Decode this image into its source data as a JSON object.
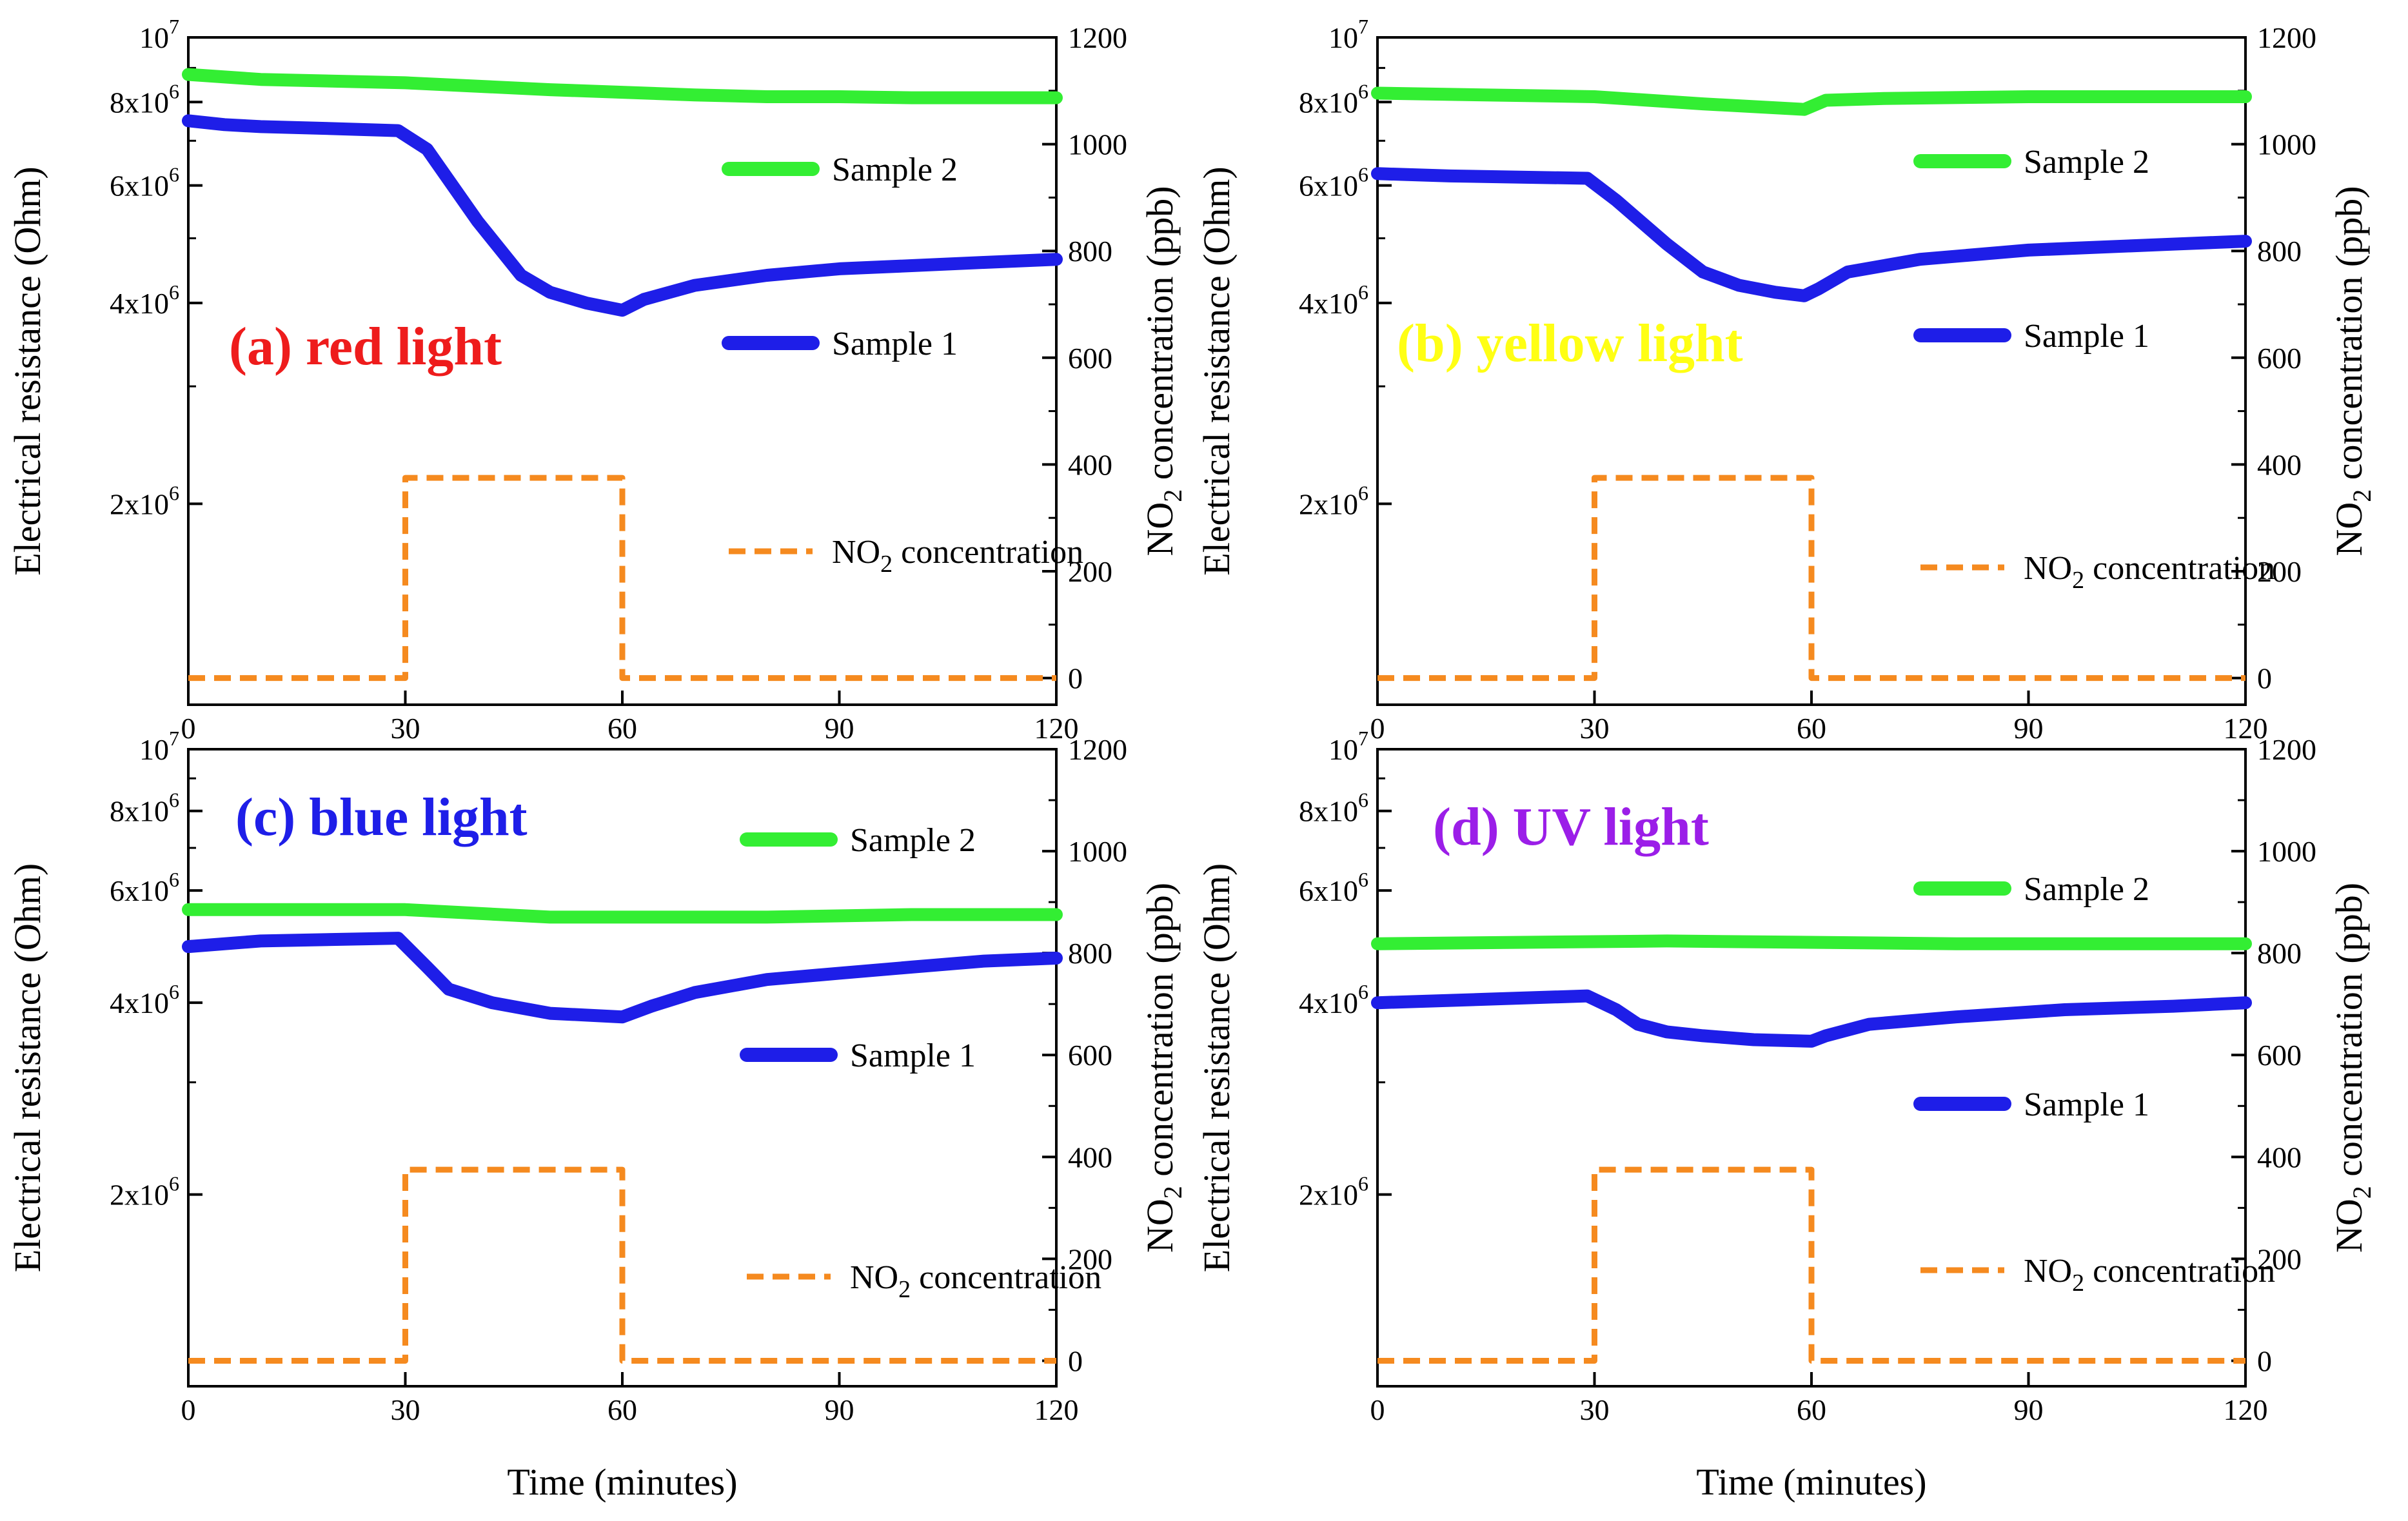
{
  "figure": {
    "shared_xlabel": "Time (minutes)",
    "sample_count": 4
  },
  "chart_data": [
    {
      "id": "a",
      "type": "line",
      "title": "(a) red light",
      "title_color": "#ee1c1c",
      "xlabel": "Time (minutes)",
      "ylabel": "Electrical resistance (Ohm)",
      "y2label": "NO2 concentration (ppb)",
      "y2label_main": "NO",
      "y2label_sub": "2",
      "y2label_rest": " concentration (ppb)",
      "xlim": [
        0,
        120
      ],
      "xticks": [
        0,
        30,
        60,
        90,
        120
      ],
      "xtick_labels": [
        "0",
        "30",
        "60",
        "90",
        "120"
      ],
      "yscale": "log",
      "ylim": [
        1000000,
        10000000
      ],
      "yticks": [
        {
          "value": 2000000,
          "mant": "2x10",
          "exp": "6"
        },
        {
          "value": 4000000,
          "mant": "4x10",
          "exp": "6"
        },
        {
          "value": 6000000,
          "mant": "6x10",
          "exp": "6"
        },
        {
          "value": 8000000,
          "mant": "8x10",
          "exp": "6"
        },
        {
          "value": 10000000,
          "mant": "10",
          "exp": "7"
        }
      ],
      "y2lim": [
        -50,
        1200
      ],
      "y2ticks": [
        0,
        200,
        400,
        600,
        800,
        1000,
        1200
      ],
      "y2tick_labels": [
        "0",
        "200",
        "400",
        "600",
        "800",
        "1000",
        "1200"
      ],
      "series": [
        {
          "name": "Sample 2",
          "axis": "left",
          "color": "#33ee33",
          "style": "solid",
          "x": [
            0,
            10,
            30,
            50,
            70,
            80,
            90,
            100,
            120
          ],
          "y": [
            8800000,
            8650000,
            8550000,
            8350000,
            8200000,
            8150000,
            8150000,
            8120000,
            8120000
          ]
        },
        {
          "name": "Sample 1",
          "axis": "left",
          "color": "#1e1ee8",
          "style": "solid",
          "x": [
            0,
            5,
            10,
            20,
            29,
            33,
            40,
            46,
            50,
            55,
            60,
            63,
            70,
            80,
            90,
            100,
            110,
            120
          ],
          "y": [
            7500000,
            7400000,
            7350000,
            7300000,
            7250000,
            6800000,
            5300000,
            4400000,
            4150000,
            4000000,
            3900000,
            4050000,
            4250000,
            4400000,
            4500000,
            4550000,
            4600000,
            4650000
          ]
        },
        {
          "name": "NO2 concentration",
          "legend_main": "NO",
          "legend_sub": "2",
          "legend_rest": " concentration",
          "axis": "right",
          "color": "#f58a1f",
          "style": "dashed",
          "x": [
            0,
            30,
            30,
            60,
            60,
            120
          ],
          "y": [
            0,
            0,
            375,
            375,
            0,
            0
          ]
        }
      ],
      "legend": [
        {
          "name": "Sample 2",
          "color": "#33ee33",
          "style": "solid"
        },
        {
          "name": "Sample 1",
          "color": "#1e1ee8",
          "style": "solid"
        },
        {
          "name": "NO2 concentration",
          "color": "#f58a1f",
          "style": "dashed"
        }
      ]
    },
    {
      "id": "b",
      "type": "line",
      "title": "(b) yellow light",
      "title_color": "#ffff14",
      "xlabel": "Time (minutes)",
      "ylabel": "Electrical resistance (Ohm)",
      "y2label": "NO2 concentration (ppb)",
      "y2label_main": "NO",
      "y2label_sub": "2",
      "y2label_rest": " concentration (ppb)",
      "xlim": [
        0,
        120
      ],
      "xticks": [
        0,
        30,
        60,
        90,
        120
      ],
      "xtick_labels": [
        "0",
        "30",
        "60",
        "90",
        "120"
      ],
      "yscale": "log",
      "ylim": [
        1000000,
        10000000
      ],
      "yticks": [
        {
          "value": 2000000,
          "mant": "2x10",
          "exp": "6"
        },
        {
          "value": 4000000,
          "mant": "4x10",
          "exp": "6"
        },
        {
          "value": 6000000,
          "mant": "6x10",
          "exp": "6"
        },
        {
          "value": 8000000,
          "mant": "8x10",
          "exp": "6"
        },
        {
          "value": 10000000,
          "mant": "10",
          "exp": "7"
        }
      ],
      "y2lim": [
        -50,
        1200
      ],
      "y2ticks": [
        0,
        200,
        400,
        600,
        800,
        1000,
        1200
      ],
      "y2tick_labels": [
        "0",
        "200",
        "400",
        "600",
        "800",
        "1000",
        "1200"
      ],
      "series": [
        {
          "name": "Sample 2",
          "axis": "left",
          "color": "#33ee33",
          "style": "solid",
          "x": [
            0,
            30,
            45,
            59,
            62,
            70,
            90,
            110,
            120
          ],
          "y": [
            8250000,
            8150000,
            7950000,
            7800000,
            8050000,
            8100000,
            8150000,
            8150000,
            8150000
          ]
        },
        {
          "name": "Sample 1",
          "axis": "left",
          "color": "#1e1ee8",
          "style": "solid",
          "x": [
            0,
            10,
            29,
            33,
            40,
            45,
            50,
            55,
            59,
            61,
            65,
            75,
            90,
            100,
            110,
            120
          ],
          "y": [
            6250000,
            6200000,
            6150000,
            5700000,
            4900000,
            4450000,
            4250000,
            4150000,
            4100000,
            4200000,
            4450000,
            4650000,
            4800000,
            4850000,
            4900000,
            4950000
          ]
        },
        {
          "name": "NO2 concentration",
          "legend_main": "NO",
          "legend_sub": "2",
          "legend_rest": " concentration",
          "axis": "right",
          "color": "#f58a1f",
          "style": "dashed",
          "x": [
            0,
            30,
            30,
            60,
            60,
            120
          ],
          "y": [
            0,
            0,
            375,
            375,
            0,
            0
          ]
        }
      ],
      "legend": [
        {
          "name": "Sample 2",
          "color": "#33ee33",
          "style": "solid"
        },
        {
          "name": "Sample 1",
          "color": "#1e1ee8",
          "style": "solid"
        },
        {
          "name": "NO2 concentration",
          "color": "#f58a1f",
          "style": "dashed"
        }
      ]
    },
    {
      "id": "c",
      "type": "line",
      "title": "(c) blue light",
      "title_color": "#1e1ee8",
      "xlabel": "Time (minutes)",
      "ylabel": "Electrical resistance (Ohm)",
      "y2label": "NO2 concentration (ppb)",
      "y2label_main": "NO",
      "y2label_sub": "2",
      "y2label_rest": " concentration (ppb)",
      "xlim": [
        0,
        120
      ],
      "xticks": [
        0,
        30,
        60,
        90,
        120
      ],
      "xtick_labels": [
        "0",
        "30",
        "60",
        "90",
        "120"
      ],
      "yscale": "log",
      "ylim": [
        1000000,
        10000000
      ],
      "yticks": [
        {
          "value": 2000000,
          "mant": "2x10",
          "exp": "6"
        },
        {
          "value": 4000000,
          "mant": "4x10",
          "exp": "6"
        },
        {
          "value": 6000000,
          "mant": "6x10",
          "exp": "6"
        },
        {
          "value": 8000000,
          "mant": "8x10",
          "exp": "6"
        },
        {
          "value": 10000000,
          "mant": "10",
          "exp": "7"
        }
      ],
      "y2lim": [
        -50,
        1200
      ],
      "y2ticks": [
        0,
        200,
        400,
        600,
        800,
        1000,
        1200
      ],
      "y2tick_labels": [
        "0",
        "200",
        "400",
        "600",
        "800",
        "1000",
        "1200"
      ],
      "series": [
        {
          "name": "Sample 2",
          "axis": "left",
          "color": "#33ee33",
          "style": "solid",
          "x": [
            0,
            30,
            50,
            60,
            80,
            100,
            120
          ],
          "y": [
            5600000,
            5600000,
            5450000,
            5450000,
            5450000,
            5500000,
            5500000
          ]
        },
        {
          "name": "Sample 1",
          "axis": "left",
          "color": "#1e1ee8",
          "style": "solid",
          "x": [
            0,
            10,
            29,
            33,
            36,
            42,
            50,
            60,
            64,
            70,
            80,
            90,
            100,
            110,
            120
          ],
          "y": [
            4900000,
            5000000,
            5050000,
            4550000,
            4200000,
            4000000,
            3850000,
            3800000,
            3950000,
            4150000,
            4350000,
            4450000,
            4550000,
            4650000,
            4700000
          ]
        },
        {
          "name": "NO2 concentration",
          "legend_main": "NO",
          "legend_sub": "2",
          "legend_rest": " concentration",
          "axis": "right",
          "color": "#f58a1f",
          "style": "dashed",
          "x": [
            0,
            30,
            30,
            60,
            60,
            120
          ],
          "y": [
            0,
            0,
            375,
            375,
            0,
            0
          ]
        }
      ],
      "legend": [
        {
          "name": "Sample 2",
          "color": "#33ee33",
          "style": "solid"
        },
        {
          "name": "Sample 1",
          "color": "#1e1ee8",
          "style": "solid"
        },
        {
          "name": "NO2 concentration",
          "color": "#f58a1f",
          "style": "dashed"
        }
      ]
    },
    {
      "id": "d",
      "type": "line",
      "title": "(d) UV light",
      "title_color": "#9b1ee8",
      "xlabel": "Time (minutes)",
      "ylabel": "Electrical resistance (Ohm)",
      "y2label": "NO2 concentration (ppb)",
      "y2label_main": "NO",
      "y2label_sub": "2",
      "y2label_rest": " concentration (ppb)",
      "xlim": [
        0,
        120
      ],
      "xticks": [
        0,
        30,
        60,
        90,
        120
      ],
      "xtick_labels": [
        "0",
        "30",
        "60",
        "90",
        "120"
      ],
      "yscale": "log",
      "ylim": [
        1000000,
        10000000
      ],
      "yticks": [
        {
          "value": 2000000,
          "mant": "2x10",
          "exp": "6"
        },
        {
          "value": 4000000,
          "mant": "4x10",
          "exp": "6"
        },
        {
          "value": 6000000,
          "mant": "6x10",
          "exp": "6"
        },
        {
          "value": 8000000,
          "mant": "8x10",
          "exp": "6"
        },
        {
          "value": 10000000,
          "mant": "10",
          "exp": "7"
        }
      ],
      "y2lim": [
        -50,
        1200
      ],
      "y2ticks": [
        0,
        200,
        400,
        600,
        800,
        1000,
        1200
      ],
      "y2tick_labels": [
        "0",
        "200",
        "400",
        "600",
        "800",
        "1000",
        "1200"
      ],
      "series": [
        {
          "name": "Sample 2",
          "axis": "left",
          "color": "#33ee33",
          "style": "solid",
          "x": [
            0,
            40,
            80,
            120
          ],
          "y": [
            4950000,
            5000000,
            4950000,
            4950000
          ]
        },
        {
          "name": "Sample 1",
          "axis": "left",
          "color": "#1e1ee8",
          "style": "solid",
          "x": [
            0,
            15,
            29,
            33,
            36,
            40,
            45,
            52,
            60,
            62,
            68,
            80,
            95,
            110,
            120
          ],
          "y": [
            4000000,
            4050000,
            4100000,
            3900000,
            3700000,
            3600000,
            3550000,
            3500000,
            3480000,
            3550000,
            3700000,
            3800000,
            3900000,
            3950000,
            4000000
          ]
        },
        {
          "name": "NO2 concentration",
          "legend_main": "NO",
          "legend_sub": "2",
          "legend_rest": " concentration",
          "axis": "right",
          "color": "#f58a1f",
          "style": "dashed",
          "x": [
            0,
            30,
            30,
            60,
            60,
            120
          ],
          "y": [
            0,
            0,
            375,
            375,
            0,
            0
          ]
        }
      ],
      "legend": [
        {
          "name": "Sample 2",
          "color": "#33ee33",
          "style": "solid"
        },
        {
          "name": "Sample 1",
          "color": "#1e1ee8",
          "style": "solid"
        },
        {
          "name": "NO2 concentration",
          "color": "#f58a1f",
          "style": "dashed"
        }
      ]
    }
  ]
}
